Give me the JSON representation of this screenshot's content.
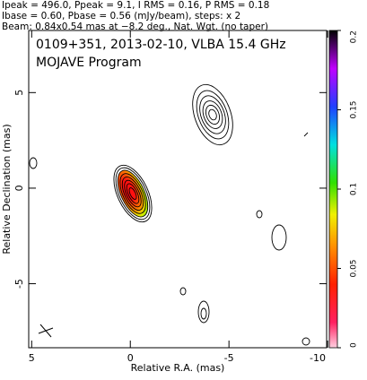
{
  "chart_data": {
    "type": "contour",
    "header": [
      "Ipeak = 496.0, Ppeak = 9.1, I RMS = 0.16, P RMS = 0.18",
      "Ibase = 0.60, Pbase = 0.56 (mJy/beam), steps: x 2",
      "Beam: 0.84x0.54 mas at −8.2 deg., Nat. Wgt. (no taper)"
    ],
    "title": "0109+351, 2013-02-10, VLBA 15.4 GHz",
    "subtitle": "MOJAVE Program",
    "x_label": "Relative R.A. (mas)",
    "y_label": "Relative Declination (mas)",
    "xlim": [
      5.15,
      -9.95
    ],
    "xticks": [
      5,
      0,
      -5,
      -10
    ],
    "ylim": [
      -8.35,
      8.25
    ],
    "yticks": [
      -5,
      0,
      5
    ],
    "clim": [
      0,
      0.2
    ],
    "cticks": [
      0,
      0.05,
      0.1,
      0.15,
      0.2
    ]
  }
}
